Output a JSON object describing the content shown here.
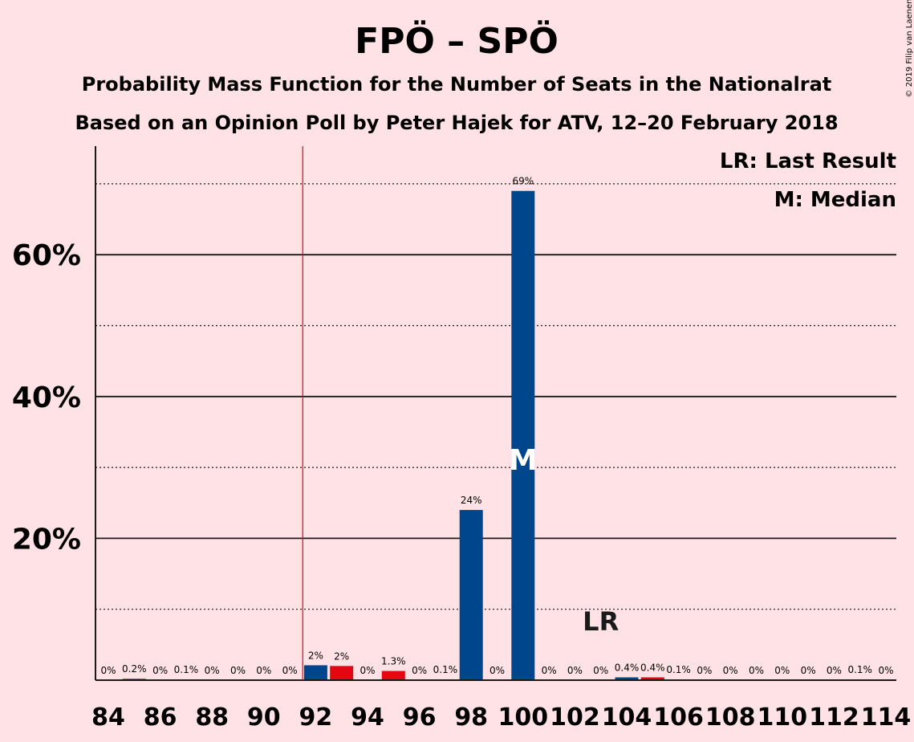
{
  "chart_data": {
    "type": "bar",
    "title": "FPÖ – SPÖ",
    "subtitle_lines": [
      "Probability Mass Function for the Number of Seats in the Nationalrat",
      "Based on an Opinion Poll by Peter Hajek for ATV, 12–20 February 2018"
    ],
    "copyright": "© 2019 Filip van Laenen",
    "legend": [
      "LR: Last Result",
      "M: Median"
    ],
    "lr_marker": "LR",
    "median_marker": "M",
    "ylim": [
      0,
      75
    ],
    "y_ticks": [
      {
        "value": 20,
        "label": "20%"
      },
      {
        "value": 40,
        "label": "40%"
      },
      {
        "value": 60,
        "label": "60%"
      }
    ],
    "y_minor_gridlines": [
      10,
      30,
      50,
      70
    ],
    "x_ticks": [
      "84",
      "86",
      "88",
      "90",
      "92",
      "94",
      "96",
      "98",
      "100",
      "102",
      "104",
      "106",
      "108",
      "110",
      "112",
      "114"
    ],
    "majority_line_x": 91.5,
    "median_seat": 100,
    "last_result_seat": 103,
    "colors": {
      "background": "#FFE2E5",
      "bar_primary": "#00468C",
      "bar_secondary": "#E30613",
      "majority_line": "#E30613",
      "text": "#1a1a1a"
    },
    "bars": [
      {
        "seat": 84,
        "value": 0,
        "label": "0%",
        "color": "primary"
      },
      {
        "seat": 85,
        "value": 0.2,
        "label": "0.2%",
        "color": "secondary"
      },
      {
        "seat": 86,
        "value": 0,
        "label": "0%",
        "color": "primary"
      },
      {
        "seat": 87,
        "value": 0.1,
        "label": "0.1%",
        "color": "secondary"
      },
      {
        "seat": 88,
        "value": 0,
        "label": "0%",
        "color": "primary"
      },
      {
        "seat": 89,
        "value": 0,
        "label": "0%",
        "color": "secondary"
      },
      {
        "seat": 90,
        "value": 0,
        "label": "0%",
        "color": "primary"
      },
      {
        "seat": 91,
        "value": 0,
        "label": "0%",
        "color": "secondary"
      },
      {
        "seat": 92,
        "value": 2.1,
        "label": "2%",
        "color": "primary"
      },
      {
        "seat": 93,
        "value": 2.0,
        "label": "2%",
        "color": "secondary"
      },
      {
        "seat": 94,
        "value": 0,
        "label": "0%",
        "color": "primary"
      },
      {
        "seat": 95,
        "value": 1.3,
        "label": "1.3%",
        "color": "secondary"
      },
      {
        "seat": 96,
        "value": 0,
        "label": "0%",
        "color": "primary"
      },
      {
        "seat": 97,
        "value": 0.1,
        "label": "0.1%",
        "color": "secondary"
      },
      {
        "seat": 98,
        "value": 24,
        "label": "24%",
        "color": "primary"
      },
      {
        "seat": 99,
        "value": 0,
        "label": "0%",
        "color": "secondary"
      },
      {
        "seat": 100,
        "value": 69,
        "label": "69%",
        "color": "primary"
      },
      {
        "seat": 101,
        "value": 0,
        "label": "0%",
        "color": "secondary"
      },
      {
        "seat": 102,
        "value": 0,
        "label": "0%",
        "color": "primary"
      },
      {
        "seat": 103,
        "value": 0,
        "label": "0%",
        "color": "secondary"
      },
      {
        "seat": 104,
        "value": 0.4,
        "label": "0.4%",
        "color": "primary"
      },
      {
        "seat": 105,
        "value": 0.4,
        "label": "0.4%",
        "color": "secondary"
      },
      {
        "seat": 106,
        "value": 0.1,
        "label": "0.1%",
        "color": "primary"
      },
      {
        "seat": 107,
        "value": 0,
        "label": "0%",
        "color": "secondary"
      },
      {
        "seat": 108,
        "value": 0,
        "label": "0%",
        "color": "primary"
      },
      {
        "seat": 109,
        "value": 0,
        "label": "0%",
        "color": "secondary"
      },
      {
        "seat": 110,
        "value": 0,
        "label": "0%",
        "color": "primary"
      },
      {
        "seat": 111,
        "value": 0,
        "label": "0%",
        "color": "secondary"
      },
      {
        "seat": 112,
        "value": 0,
        "label": "0%",
        "color": "primary"
      },
      {
        "seat": 113,
        "value": 0.1,
        "label": "0.1%",
        "color": "secondary"
      },
      {
        "seat": 114,
        "value": 0,
        "label": "0%",
        "color": "primary"
      }
    ]
  }
}
